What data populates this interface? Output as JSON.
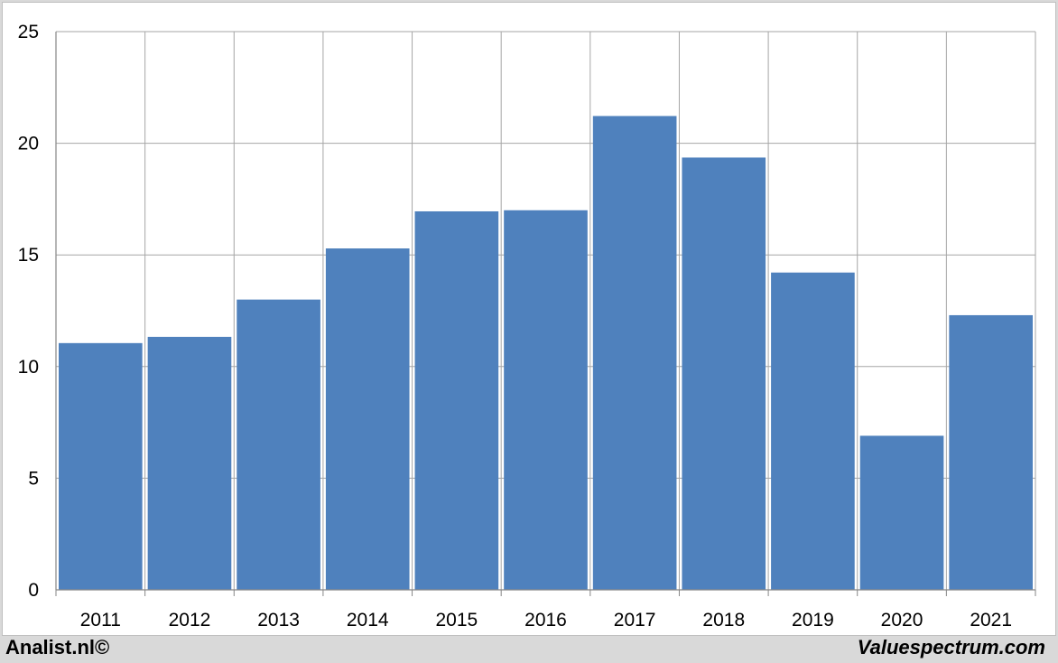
{
  "chart_data": {
    "type": "bar",
    "categories": [
      "2011",
      "2012",
      "2013",
      "2014",
      "2015",
      "2016",
      "2017",
      "2018",
      "2019",
      "2020",
      "2021"
    ],
    "values": [
      11.05,
      11.33,
      13.0,
      15.29,
      16.95,
      17.0,
      21.22,
      19.36,
      14.21,
      6.9,
      12.3
    ],
    "title": "",
    "xlabel": "",
    "ylabel": "",
    "ylim": [
      0,
      25
    ],
    "yticks": [
      "0",
      "5",
      "10",
      "15",
      "20",
      "25"
    ],
    "grid": true,
    "bar_color": "#4f81bd"
  },
  "footer": {
    "left": "Analist.nl©",
    "right": "Valuespectrum.com"
  }
}
